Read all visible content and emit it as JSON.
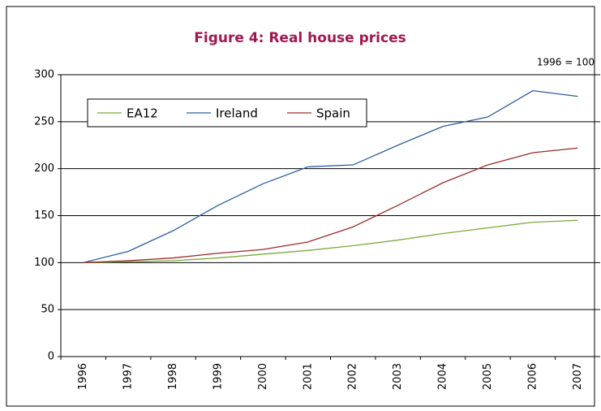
{
  "chart_data": {
    "type": "line",
    "title": "Figure 4: Real house prices",
    "annotation": "1996 = 100",
    "categories": [
      "1996",
      "1997",
      "1998",
      "1999",
      "2000",
      "2001",
      "2002",
      "2003",
      "2004",
      "2005",
      "2006",
      "2007"
    ],
    "series": [
      {
        "name": "EA12",
        "color": "#7aab3b",
        "values": [
          100,
          101,
          102,
          105,
          109,
          113,
          118,
          124,
          131,
          137,
          143,
          145
        ]
      },
      {
        "name": "Ireland",
        "color": "#2b5c9e",
        "values": [
          100,
          112,
          134,
          161,
          184,
          202,
          204,
          225,
          245,
          255,
          283,
          277
        ]
      },
      {
        "name": "Spain",
        "color": "#9e2a2a",
        "values": [
          100,
          102,
          105,
          110,
          114,
          122,
          138,
          161,
          185,
          204,
          217,
          222
        ]
      }
    ],
    "ylim": [
      0,
      300
    ],
    "yticks": [
      0,
      50,
      100,
      150,
      200,
      250,
      300
    ],
    "grid": true,
    "legend": "upper left"
  }
}
